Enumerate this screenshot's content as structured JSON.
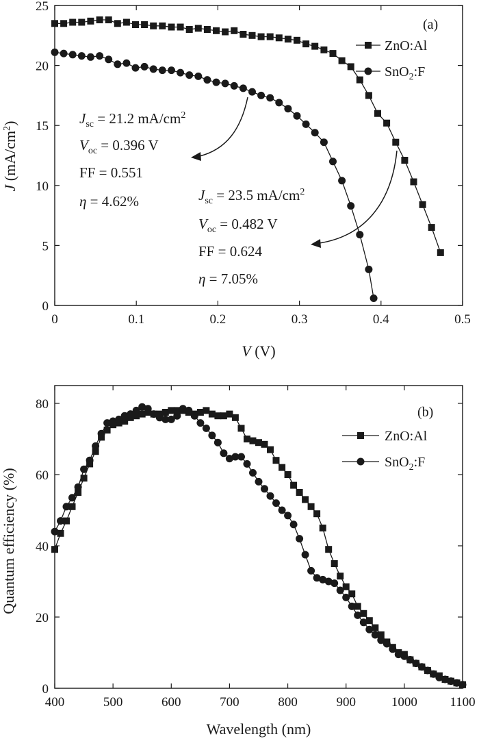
{
  "chart_data": [
    {
      "type": "line",
      "panel_label": "(a)",
      "xlabel": {
        "italic": "V",
        "rest": " (V)"
      },
      "ylabel": {
        "italic": "J",
        "rest": " (mA/cm",
        "sup": "2",
        "end": ")"
      },
      "xlim": [
        0,
        0.5
      ],
      "ylim": [
        0,
        25
      ],
      "xticks": [
        0,
        0.1,
        0.2,
        0.3,
        0.4,
        0.5
      ],
      "xtick_labels": [
        "0",
        "0.1",
        "0.2",
        "0.3",
        "0.4",
        "0.5"
      ],
      "yticks": [
        0,
        5,
        10,
        15,
        20,
        25
      ],
      "ytick_labels": [
        "0",
        "5",
        "10",
        "15",
        "20",
        "25"
      ],
      "legend_position": "top-right",
      "series": [
        {
          "name": "ZnO:Al",
          "marker": "square",
          "x": [
            0.0,
            0.011,
            0.022,
            0.033,
            0.044,
            0.055,
            0.066,
            0.077,
            0.088,
            0.099,
            0.11,
            0.121,
            0.132,
            0.143,
            0.154,
            0.165,
            0.176,
            0.187,
            0.198,
            0.209,
            0.22,
            0.231,
            0.242,
            0.253,
            0.264,
            0.275,
            0.286,
            0.297,
            0.308,
            0.319,
            0.33,
            0.341,
            0.352,
            0.363,
            0.374,
            0.385,
            0.396,
            0.407,
            0.418,
            0.429,
            0.44,
            0.451,
            0.462,
            0.473
          ],
          "y": [
            23.5,
            23.5,
            23.6,
            23.6,
            23.7,
            23.8,
            23.8,
            23.5,
            23.6,
            23.4,
            23.4,
            23.3,
            23.3,
            23.2,
            23.2,
            23.0,
            23.1,
            23.0,
            22.9,
            22.8,
            22.9,
            22.6,
            22.5,
            22.4,
            22.4,
            22.3,
            22.2,
            22.1,
            21.8,
            21.6,
            21.3,
            21.0,
            20.4,
            19.9,
            18.8,
            17.5,
            16.0,
            15.2,
            13.6,
            12.1,
            10.3,
            8.4,
            6.5,
            4.4
          ]
        },
        {
          "name": "SnO2:F",
          "name_parts": {
            "main": "SnO",
            "sub": "2",
            "end": ":F"
          },
          "marker": "circle",
          "x": [
            0.0,
            0.011,
            0.022,
            0.033,
            0.044,
            0.055,
            0.066,
            0.077,
            0.088,
            0.099,
            0.11,
            0.121,
            0.132,
            0.143,
            0.154,
            0.165,
            0.176,
            0.187,
            0.198,
            0.209,
            0.22,
            0.231,
            0.242,
            0.253,
            0.264,
            0.275,
            0.286,
            0.297,
            0.308,
            0.319,
            0.33,
            0.341,
            0.352,
            0.363,
            0.374,
            0.385,
            0.391
          ],
          "y": [
            21.1,
            21.0,
            20.9,
            20.8,
            20.7,
            20.8,
            20.5,
            20.1,
            20.2,
            19.8,
            19.9,
            19.7,
            19.6,
            19.6,
            19.4,
            19.2,
            19.1,
            18.8,
            18.6,
            18.5,
            18.3,
            18.1,
            17.8,
            17.5,
            17.3,
            16.9,
            16.4,
            15.8,
            15.1,
            14.4,
            13.6,
            12.0,
            10.4,
            8.3,
            5.9,
            3.0,
            0.6
          ]
        }
      ],
      "annotations": [
        {
          "J_sym": "J",
          "J_sub": "sc",
          "J_val": " = 21.2 mA/cm",
          "J_sup": "2",
          "V_sym": "V",
          "V_sub": "oc",
          "V_val": " = 0.396 V",
          "FF": "FF = 0.551",
          "eta_sym": "η",
          "eta_val": " = 4.62%"
        },
        {
          "J_sym": "J",
          "J_sub": "sc",
          "J_val": " = 23.5 mA/cm",
          "J_sup": "2",
          "V_sym": "V",
          "V_sub": "oc",
          "V_val": " = 0.482 V",
          "FF": "FF = 0.624",
          "eta_sym": "η",
          "eta_val": " = 7.05%"
        }
      ]
    },
    {
      "type": "line",
      "panel_label": "(b)",
      "xlabel": "Wavelength (nm)",
      "ylabel": "Quantum efficiency (%)",
      "xlim": [
        400,
        1100
      ],
      "ylim": [
        0,
        85
      ],
      "xticks": [
        400,
        500,
        600,
        700,
        800,
        900,
        1000,
        1100
      ],
      "xtick_labels": [
        "400",
        "500",
        "600",
        "700",
        "800",
        "900",
        "1000",
        "1100"
      ],
      "yticks": [
        0,
        20,
        40,
        60,
        80
      ],
      "ytick_labels": [
        "0",
        "20",
        "40",
        "60",
        "80"
      ],
      "legend_position": "top-right",
      "series": [
        {
          "name": "ZnO:Al",
          "marker": "square",
          "x": [
            400,
            410,
            420,
            430,
            440,
            450,
            460,
            470,
            480,
            490,
            500,
            510,
            520,
            530,
            540,
            550,
            560,
            570,
            580,
            590,
            600,
            610,
            620,
            630,
            640,
            650,
            660,
            670,
            680,
            690,
            700,
            710,
            720,
            730,
            740,
            750,
            760,
            770,
            780,
            790,
            800,
            810,
            820,
            830,
            840,
            850,
            860,
            870,
            880,
            890,
            900,
            910,
            920,
            930,
            940,
            950,
            960,
            970,
            980,
            990,
            1000,
            1010,
            1020,
            1030,
            1040,
            1050,
            1060,
            1070,
            1080,
            1090,
            1100
          ],
          "y": [
            39,
            43.5,
            47,
            51,
            55,
            59,
            63,
            66.5,
            70.5,
            72.5,
            74,
            74.5,
            75,
            76,
            76.5,
            77,
            77.5,
            77,
            77,
            77.5,
            78,
            78,
            78,
            77.5,
            77,
            77.5,
            78,
            77,
            76.5,
            76.5,
            77,
            76,
            73,
            70,
            69.5,
            69,
            68.5,
            67,
            64,
            62,
            60,
            57,
            55,
            53,
            51,
            49,
            45,
            39,
            35,
            31.5,
            28.5,
            26.5,
            23,
            21,
            19,
            17,
            15,
            13,
            11.5,
            10,
            9.5,
            8,
            7,
            6,
            5,
            4,
            3.5,
            2.5,
            2,
            1.5,
            1
          ]
        },
        {
          "name": "SnO2:F",
          "name_parts": {
            "main": "SnO",
            "sub": "2",
            "end": ":F"
          },
          "marker": "circle",
          "x": [
            400,
            410,
            420,
            430,
            440,
            450,
            460,
            470,
            480,
            490,
            500,
            510,
            520,
            530,
            540,
            550,
            560,
            570,
            580,
            590,
            600,
            610,
            620,
            630,
            640,
            650,
            660,
            670,
            680,
            690,
            700,
            710,
            720,
            730,
            740,
            750,
            760,
            770,
            780,
            790,
            800,
            810,
            820,
            830,
            840,
            850,
            860,
            870,
            880,
            890,
            900,
            910,
            920,
            930,
            940,
            950,
            960,
            970,
            980,
            990,
            1000,
            1010,
            1020,
            1030,
            1040,
            1050,
            1060,
            1070,
            1080,
            1090,
            1100
          ],
          "y": [
            44,
            47,
            51,
            53.5,
            56.5,
            61.5,
            64,
            68,
            71.5,
            74.5,
            75,
            75.5,
            76.5,
            77,
            78,
            79,
            78.5,
            77,
            76,
            75.5,
            75.5,
            76.5,
            78.5,
            78,
            76.5,
            74.5,
            73,
            71,
            69,
            66,
            64.5,
            65,
            65,
            63,
            60.5,
            58,
            56,
            54,
            52,
            50,
            48.5,
            46,
            42,
            37.5,
            33,
            31,
            30.5,
            30,
            29.5,
            27.5,
            25.5,
            23,
            20.5,
            18.5,
            16.5,
            15,
            13.5,
            12.5,
            11,
            9.5,
            9,
            8,
            7,
            6,
            5,
            4,
            3,
            2.5,
            2,
            1.5,
            1
          ]
        }
      ]
    }
  ]
}
